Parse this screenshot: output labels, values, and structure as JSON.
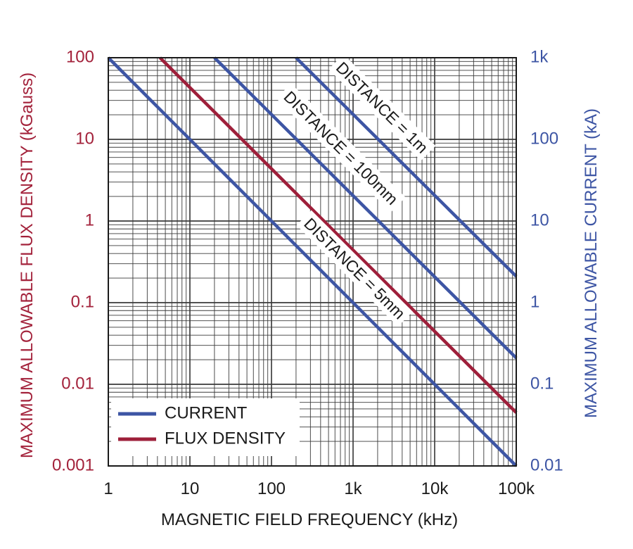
{
  "chart_data": {
    "type": "line",
    "x_axis": {
      "label": "MAGNETIC FIELD FREQUENCY (kHz)",
      "scale": "log",
      "range": [
        1,
        100000
      ],
      "ticks": [
        {
          "value": 1,
          "label": "1"
        },
        {
          "value": 10,
          "label": "10"
        },
        {
          "value": 100,
          "label": "100"
        },
        {
          "value": 1000,
          "label": "1k"
        },
        {
          "value": 10000,
          "label": "10k"
        },
        {
          "value": 100000,
          "label": "100k"
        }
      ]
    },
    "y_left_axis": {
      "label": "MAXIMUM ALLOWABLE FLUX DENSITY (kGauss)",
      "scale": "log",
      "range": [
        0.001,
        100
      ],
      "ticks": [
        {
          "value": 100,
          "label": "100"
        },
        {
          "value": 10,
          "label": "10"
        },
        {
          "value": 1,
          "label": "1"
        },
        {
          "value": 0.1,
          "label": "0.1"
        },
        {
          "value": 0.01,
          "label": "0.01"
        },
        {
          "value": 0.001,
          "label": "0.001"
        }
      ],
      "color": "#a3223b"
    },
    "y_right_axis": {
      "label": "MAXIMUM ALLOWABLE CURRENT (kA)",
      "scale": "log",
      "range": [
        0.01,
        1000
      ],
      "ticks": [
        {
          "value": 1000,
          "label": "1k"
        },
        {
          "value": 100,
          "label": "100"
        },
        {
          "value": 10,
          "label": "10"
        },
        {
          "value": 1,
          "label": "1"
        },
        {
          "value": 0.1,
          "label": "0.1"
        },
        {
          "value": 0.01,
          "label": "0.01"
        }
      ],
      "color": "#3d55a4"
    },
    "grid": true,
    "legend": {
      "position": "bottom-left",
      "entries": [
        {
          "label": "CURRENT",
          "color": "#3d55a4"
        },
        {
          "label": "FLUX DENSITY",
          "color": "#9e1f3a"
        }
      ]
    },
    "series": [
      {
        "legend": "CURRENT",
        "axis": "right",
        "color": "#3d55a4",
        "annotation": "DISTANCE = 5mm",
        "x": [
          1,
          100000
        ],
        "y": [
          1000,
          0.01
        ]
      },
      {
        "legend": "FLUX DENSITY",
        "axis": "left",
        "color": "#9e1f3a",
        "annotation": "",
        "x": [
          4.3,
          100000
        ],
        "y": [
          100,
          0.0045
        ]
      },
      {
        "legend": "CURRENT",
        "axis": "right",
        "color": "#3d55a4",
        "annotation": "DISTANCE = 100mm",
        "x": [
          20,
          100000
        ],
        "y": [
          1000,
          0.21
        ]
      },
      {
        "legend": "CURRENT",
        "axis": "right",
        "color": "#3d55a4",
        "annotation": "DISTANCE = 1m",
        "x": [
          200,
          100000
        ],
        "y": [
          1000,
          2.1
        ]
      }
    ]
  }
}
